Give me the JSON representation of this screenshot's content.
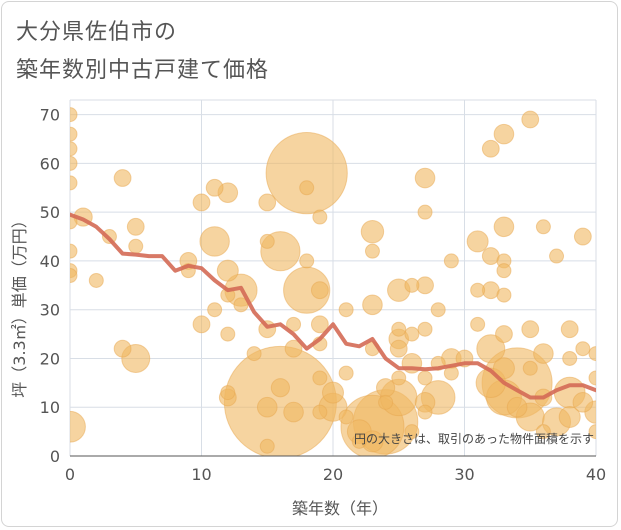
{
  "title_line1": "大分県佐伯市の",
  "title_line2": "築年数別中古戸建て価格",
  "chart_data": {
    "type": "scatter",
    "xlabel": "築年数（年）",
    "ylabel": "坪（3.3㎡）単価（万円）",
    "note": "円の大きさは、取引のあった物件面積を示す",
    "xlim": [
      0,
      40
    ],
    "ylim": [
      0,
      73
    ],
    "xticks": [
      0,
      10,
      20,
      30,
      40
    ],
    "yticks": [
      0,
      10,
      20,
      30,
      40,
      50,
      60,
      70
    ],
    "grid": true,
    "colors": {
      "bubble": "#f0b860",
      "line": "#d46a55",
      "grid": "#d8dee6",
      "axis_text": "#555555"
    },
    "bubbles": [
      {
        "x": 0,
        "y": 70,
        "s": 1.0
      },
      {
        "x": 0,
        "y": 66,
        "s": 1.0
      },
      {
        "x": 0,
        "y": 63,
        "s": 1.0
      },
      {
        "x": 0,
        "y": 60,
        "s": 1.0
      },
      {
        "x": 0,
        "y": 56,
        "s": 1.0
      },
      {
        "x": 0,
        "y": 48,
        "s": 1.0
      },
      {
        "x": 0,
        "y": 42,
        "s": 1.0
      },
      {
        "x": 0,
        "y": 38,
        "s": 1.0
      },
      {
        "x": 0,
        "y": 37,
        "s": 1.0
      },
      {
        "x": 0,
        "y": 6,
        "s": 2.2
      },
      {
        "x": 1,
        "y": 49,
        "s": 1.3
      },
      {
        "x": 2,
        "y": 36,
        "s": 1.0
      },
      {
        "x": 3,
        "y": 45,
        "s": 1.0
      },
      {
        "x": 4,
        "y": 57,
        "s": 1.2
      },
      {
        "x": 4,
        "y": 22,
        "s": 1.2
      },
      {
        "x": 5,
        "y": 47,
        "s": 1.2
      },
      {
        "x": 5,
        "y": 43,
        "s": 1.0
      },
      {
        "x": 5,
        "y": 20,
        "s": 2.0
      },
      {
        "x": 9,
        "y": 40,
        "s": 1.2
      },
      {
        "x": 9,
        "y": 38,
        "s": 1.0
      },
      {
        "x": 10,
        "y": 52,
        "s": 1.2
      },
      {
        "x": 10,
        "y": 27,
        "s": 1.2
      },
      {
        "x": 11,
        "y": 55,
        "s": 1.2
      },
      {
        "x": 11,
        "y": 44,
        "s": 2.1
      },
      {
        "x": 11,
        "y": 30,
        "s": 1.0
      },
      {
        "x": 12,
        "y": 54,
        "s": 1.4
      },
      {
        "x": 12,
        "y": 38,
        "s": 1.5
      },
      {
        "x": 12,
        "y": 33,
        "s": 1.0
      },
      {
        "x": 12,
        "y": 25,
        "s": 1.0
      },
      {
        "x": 12,
        "y": 13,
        "s": 1.0
      },
      {
        "x": 12,
        "y": 12,
        "s": 1.2
      },
      {
        "x": 13,
        "y": 34,
        "s": 2.3
      },
      {
        "x": 13,
        "y": 31,
        "s": 1.0
      },
      {
        "x": 14,
        "y": 21,
        "s": 1.0
      },
      {
        "x": 15,
        "y": 52,
        "s": 1.2
      },
      {
        "x": 15,
        "y": 44,
        "s": 1.0
      },
      {
        "x": 15,
        "y": 26,
        "s": 1.2
      },
      {
        "x": 15,
        "y": 10,
        "s": 1.4
      },
      {
        "x": 15,
        "y": 2,
        "s": 1.0
      },
      {
        "x": 16,
        "y": 42,
        "s": 2.8
      },
      {
        "x": 16,
        "y": 14,
        "s": 1.3
      },
      {
        "x": 16,
        "y": 11,
        "s": 8.0
      },
      {
        "x": 17,
        "y": 27,
        "s": 1.0
      },
      {
        "x": 17,
        "y": 22,
        "s": 1.2
      },
      {
        "x": 17,
        "y": 9,
        "s": 1.4
      },
      {
        "x": 18,
        "y": 58,
        "s": 5.8
      },
      {
        "x": 18,
        "y": 55,
        "s": 1.0
      },
      {
        "x": 18,
        "y": 40,
        "s": 1.0
      },
      {
        "x": 18,
        "y": 34,
        "s": 3.3
      },
      {
        "x": 19,
        "y": 49,
        "s": 1.0
      },
      {
        "x": 19,
        "y": 34,
        "s": 1.2
      },
      {
        "x": 19,
        "y": 27,
        "s": 1.2
      },
      {
        "x": 19,
        "y": 23,
        "s": 1.0
      },
      {
        "x": 19,
        "y": 16,
        "s": 1.0
      },
      {
        "x": 19,
        "y": 9,
        "s": 1.0
      },
      {
        "x": 20,
        "y": 13,
        "s": 1.5
      },
      {
        "x": 20,
        "y": 10,
        "s": 2.0
      },
      {
        "x": 21,
        "y": 30,
        "s": 1.0
      },
      {
        "x": 21,
        "y": 17,
        "s": 1.0
      },
      {
        "x": 21,
        "y": 8,
        "s": 1.0
      },
      {
        "x": 22,
        "y": 5,
        "s": 1.7
      },
      {
        "x": 22,
        "y": 3,
        "s": 1.0
      },
      {
        "x": 23,
        "y": 46,
        "s": 1.6
      },
      {
        "x": 23,
        "y": 42,
        "s": 1.0
      },
      {
        "x": 23,
        "y": 31,
        "s": 1.4
      },
      {
        "x": 23,
        "y": 22,
        "s": 1.0
      },
      {
        "x": 23,
        "y": 6,
        "s": 4.5
      },
      {
        "x": 23,
        "y": 3,
        "s": 1.5
      },
      {
        "x": 24,
        "y": 14,
        "s": 1.3
      },
      {
        "x": 24,
        "y": 11,
        "s": 1.0
      },
      {
        "x": 24,
        "y": 7,
        "s": 4.6
      },
      {
        "x": 25,
        "y": 34,
        "s": 1.6
      },
      {
        "x": 25,
        "y": 26,
        "s": 1.0
      },
      {
        "x": 25,
        "y": 24,
        "s": 1.4
      },
      {
        "x": 25,
        "y": 22,
        "s": 1.2
      },
      {
        "x": 25,
        "y": 16,
        "s": 1.0
      },
      {
        "x": 25,
        "y": 12,
        "s": 2.6
      },
      {
        "x": 26,
        "y": 35,
        "s": 1.0
      },
      {
        "x": 26,
        "y": 25,
        "s": 1.0
      },
      {
        "x": 26,
        "y": 19,
        "s": 1.4
      },
      {
        "x": 26,
        "y": 5,
        "s": 1.0
      },
      {
        "x": 27,
        "y": 57,
        "s": 1.4
      },
      {
        "x": 27,
        "y": 50,
        "s": 1.0
      },
      {
        "x": 27,
        "y": 35,
        "s": 1.2
      },
      {
        "x": 27,
        "y": 26,
        "s": 1.0
      },
      {
        "x": 27,
        "y": 16,
        "s": 1.0
      },
      {
        "x": 27,
        "y": 11,
        "s": 1.4
      },
      {
        "x": 27,
        "y": 9,
        "s": 1.0
      },
      {
        "x": 28,
        "y": 30,
        "s": 1.0
      },
      {
        "x": 28,
        "y": 19,
        "s": 1.0
      },
      {
        "x": 28,
        "y": 12,
        "s": 2.4
      },
      {
        "x": 29,
        "y": 40,
        "s": 1.0
      },
      {
        "x": 29,
        "y": 20,
        "s": 1.4
      },
      {
        "x": 29,
        "y": 17,
        "s": 1.0
      },
      {
        "x": 30,
        "y": 20,
        "s": 1.2
      },
      {
        "x": 31,
        "y": 44,
        "s": 1.5
      },
      {
        "x": 31,
        "y": 34,
        "s": 1.0
      },
      {
        "x": 31,
        "y": 27,
        "s": 1.0
      },
      {
        "x": 32,
        "y": 63,
        "s": 1.2
      },
      {
        "x": 32,
        "y": 41,
        "s": 1.2
      },
      {
        "x": 32,
        "y": 34,
        "s": 1.2
      },
      {
        "x": 32,
        "y": 22,
        "s": 2.0
      },
      {
        "x": 32,
        "y": 15,
        "s": 2.1
      },
      {
        "x": 33,
        "y": 66,
        "s": 1.4
      },
      {
        "x": 33,
        "y": 47,
        "s": 1.4
      },
      {
        "x": 33,
        "y": 40,
        "s": 1.0
      },
      {
        "x": 33,
        "y": 38,
        "s": 1.0
      },
      {
        "x": 33,
        "y": 33,
        "s": 1.0
      },
      {
        "x": 33,
        "y": 25,
        "s": 1.2
      },
      {
        "x": 33,
        "y": 18,
        "s": 1.5
      },
      {
        "x": 33,
        "y": 12,
        "s": 2.5
      },
      {
        "x": 34,
        "y": 15,
        "s": 5.0
      },
      {
        "x": 34,
        "y": 10,
        "s": 1.4
      },
      {
        "x": 35,
        "y": 69,
        "s": 1.2
      },
      {
        "x": 35,
        "y": 26,
        "s": 1.2
      },
      {
        "x": 35,
        "y": 18,
        "s": 1.0
      },
      {
        "x": 35,
        "y": 8,
        "s": 2.0
      },
      {
        "x": 36,
        "y": 47,
        "s": 1.0
      },
      {
        "x": 36,
        "y": 21,
        "s": 1.4
      },
      {
        "x": 36,
        "y": 12,
        "s": 1.2
      },
      {
        "x": 36,
        "y": 5,
        "s": 1.0
      },
      {
        "x": 37,
        "y": 41,
        "s": 1.0
      },
      {
        "x": 37,
        "y": 7,
        "s": 2.0
      },
      {
        "x": 38,
        "y": 26,
        "s": 1.2
      },
      {
        "x": 38,
        "y": 20,
        "s": 1.0
      },
      {
        "x": 38,
        "y": 13,
        "s": 2.2
      },
      {
        "x": 38,
        "y": 8,
        "s": 1.5
      },
      {
        "x": 39,
        "y": 45,
        "s": 1.2
      },
      {
        "x": 39,
        "y": 22,
        "s": 1.0
      },
      {
        "x": 39,
        "y": 11,
        "s": 1.4
      },
      {
        "x": 40,
        "y": 21,
        "s": 1.0
      },
      {
        "x": 40,
        "y": 16,
        "s": 1.0
      },
      {
        "x": 40,
        "y": 9,
        "s": 1.6
      },
      {
        "x": 40,
        "y": 5,
        "s": 1.0
      }
    ],
    "trend": [
      {
        "x": 0,
        "y": 49.5
      },
      {
        "x": 1,
        "y": 48.5
      },
      {
        "x": 2,
        "y": 47
      },
      {
        "x": 3,
        "y": 44.5
      },
      {
        "x": 4,
        "y": 41.5
      },
      {
        "x": 5,
        "y": 41.3
      },
      {
        "x": 6,
        "y": 41
      },
      {
        "x": 7,
        "y": 41
      },
      {
        "x": 8,
        "y": 38
      },
      {
        "x": 9,
        "y": 39
      },
      {
        "x": 10,
        "y": 38.5
      },
      {
        "x": 11,
        "y": 36
      },
      {
        "x": 12,
        "y": 34
      },
      {
        "x": 13,
        "y": 34.5
      },
      {
        "x": 14,
        "y": 29.5
      },
      {
        "x": 15,
        "y": 26.5
      },
      {
        "x": 16,
        "y": 27
      },
      {
        "x": 17,
        "y": 25
      },
      {
        "x": 18,
        "y": 22
      },
      {
        "x": 19,
        "y": 24
      },
      {
        "x": 20,
        "y": 27
      },
      {
        "x": 21,
        "y": 23
      },
      {
        "x": 22,
        "y": 22.5
      },
      {
        "x": 23,
        "y": 24
      },
      {
        "x": 24,
        "y": 20
      },
      {
        "x": 25,
        "y": 18
      },
      {
        "x": 26,
        "y": 18
      },
      {
        "x": 27,
        "y": 17.8
      },
      {
        "x": 28,
        "y": 18
      },
      {
        "x": 29,
        "y": 18.5
      },
      {
        "x": 30,
        "y": 19
      },
      {
        "x": 31,
        "y": 19
      },
      {
        "x": 32,
        "y": 17.5
      },
      {
        "x": 33,
        "y": 15
      },
      {
        "x": 34,
        "y": 13.5
      },
      {
        "x": 35,
        "y": 12
      },
      {
        "x": 36,
        "y": 12
      },
      {
        "x": 37,
        "y": 13.5
      },
      {
        "x": 38,
        "y": 14.5
      },
      {
        "x": 39,
        "y": 14.5
      },
      {
        "x": 40,
        "y": 13.5
      }
    ]
  }
}
